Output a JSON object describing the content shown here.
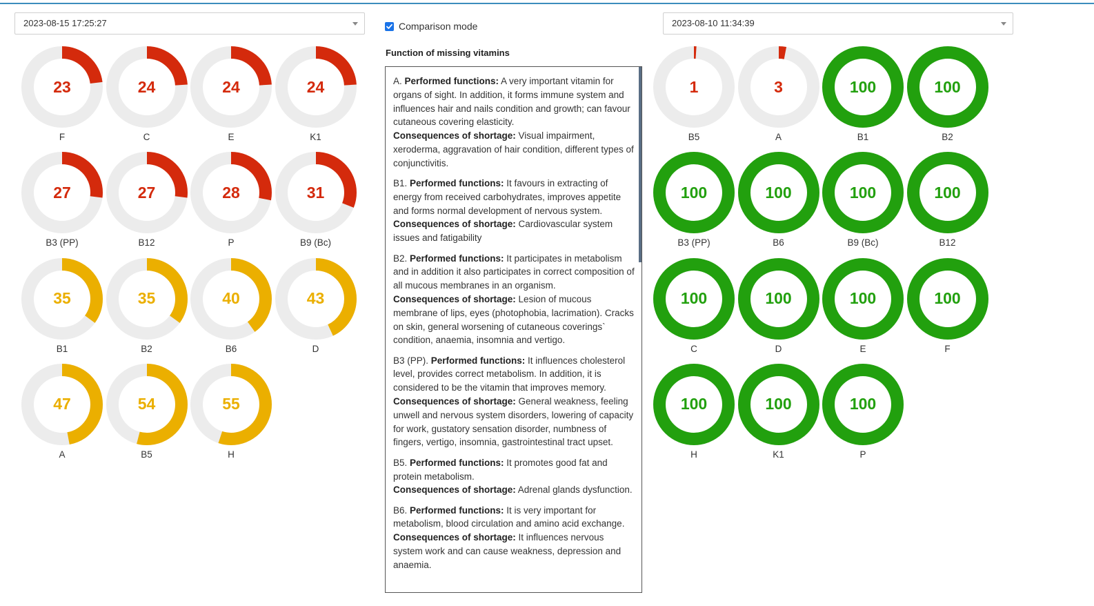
{
  "left_select": {
    "value": "2023-08-15 17:25:27"
  },
  "right_select": {
    "value": "2023-08-10 11:34:39"
  },
  "comparison": {
    "label": "Comparison mode",
    "checked": true
  },
  "info_panel": {
    "title": "Function of missing vitamins",
    "performed_label": "Performed functions:",
    "consequences_label": "Consequences of shortage:",
    "entries": [
      {
        "prefix": "A. ",
        "performed": "A very important vitamin for organs of sight. In addition, it forms immune system and influences hair and nails condition and growth; can favour cutaneous covering elasticity.",
        "consequences": "Visual impairment, xeroderma, aggravation of hair condition, different types of conjunctivitis."
      },
      {
        "prefix": "B1. ",
        "performed": "It favours in extracting of energy from received carbohydrates, improves appetite and forms normal development of nervous system.",
        "consequences": "Cardiovascular system issues and fatigability"
      },
      {
        "prefix": "B2. ",
        "performed": "It participates in metabolism and in addition it also participates in correct composition of all mucous membranes in an organism.",
        "consequences": "Lesion of mucous membrane of lips, eyes (photophobia, lacrimation). Cracks on skin, general worsening of cutaneous coverings` condition, anaemia, insomnia and vertigo."
      },
      {
        "prefix": "B3 (PP). ",
        "performed": "It influences cholesterol level, provides correct metabolism. In addition, it is considered to be the vitamin that improves memory.",
        "consequences": "General weakness, feeling unwell and nervous system disorders, lowering of capacity for work, gustatory sensation disorder, numbness of fingers, vertigo, insomnia, gastrointestinal tract upset."
      },
      {
        "prefix": "B5. ",
        "performed": "It promotes good fat and protein metabolism.",
        "consequences": "Adrenal glands dysfunction."
      },
      {
        "prefix": "B6. ",
        "performed": "It is very important for metabolism, blood circulation and amino acid exchange.",
        "consequences": "It influences nervous system work and can cause weakness, depression and anaemia."
      }
    ]
  },
  "colors": {
    "red": "#d42a0c",
    "orange": "#ebaf00",
    "green": "#22a00e",
    "track": "#ececec"
  },
  "left_vitamins": [
    {
      "label": "F",
      "value": 23,
      "status": "red"
    },
    {
      "label": "C",
      "value": 24,
      "status": "red"
    },
    {
      "label": "E",
      "value": 24,
      "status": "red"
    },
    {
      "label": "K1",
      "value": 24,
      "status": "red"
    },
    {
      "label": "B3 (PP)",
      "value": 27,
      "status": "red"
    },
    {
      "label": "B12",
      "value": 27,
      "status": "red"
    },
    {
      "label": "P",
      "value": 28,
      "status": "red"
    },
    {
      "label": "B9 (Bc)",
      "value": 31,
      "status": "red"
    },
    {
      "label": "B1",
      "value": 35,
      "status": "orange"
    },
    {
      "label": "B2",
      "value": 35,
      "status": "orange"
    },
    {
      "label": "B6",
      "value": 40,
      "status": "orange"
    },
    {
      "label": "D",
      "value": 43,
      "status": "orange"
    },
    {
      "label": "A",
      "value": 47,
      "status": "orange"
    },
    {
      "label": "B5",
      "value": 54,
      "status": "orange"
    },
    {
      "label": "H",
      "value": 55,
      "status": "orange"
    }
  ],
  "right_vitamins": [
    {
      "label": "B5",
      "value": 1,
      "status": "red"
    },
    {
      "label": "A",
      "value": 3,
      "status": "red"
    },
    {
      "label": "B1",
      "value": 100,
      "status": "green"
    },
    {
      "label": "B2",
      "value": 100,
      "status": "green"
    },
    {
      "label": "B3 (PP)",
      "value": 100,
      "status": "green"
    },
    {
      "label": "B6",
      "value": 100,
      "status": "green"
    },
    {
      "label": "B9 (Bc)",
      "value": 100,
      "status": "green"
    },
    {
      "label": "B12",
      "value": 100,
      "status": "green"
    },
    {
      "label": "C",
      "value": 100,
      "status": "green"
    },
    {
      "label": "D",
      "value": 100,
      "status": "green"
    },
    {
      "label": "E",
      "value": 100,
      "status": "green"
    },
    {
      "label": "F",
      "value": 100,
      "status": "green"
    },
    {
      "label": "H",
      "value": 100,
      "status": "green"
    },
    {
      "label": "K1",
      "value": 100,
      "status": "green"
    },
    {
      "label": "P",
      "value": 100,
      "status": "green"
    }
  ]
}
